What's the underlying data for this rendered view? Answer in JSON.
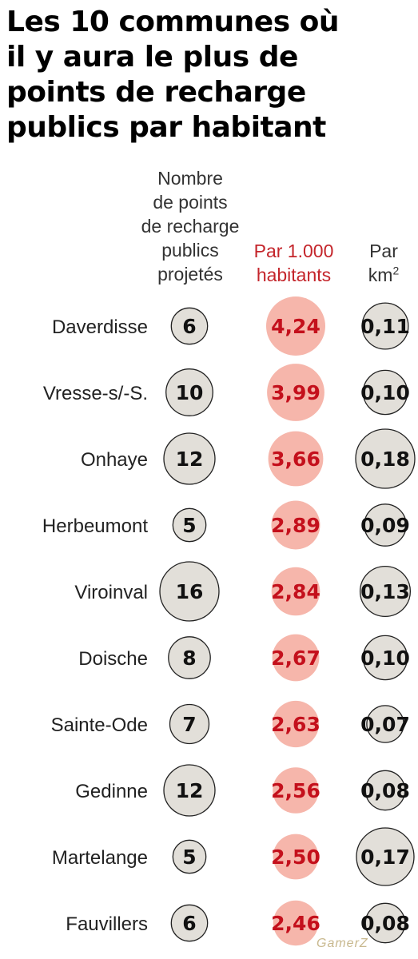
{
  "title": "Les 10 communes où\nil y aura le plus de\npoints de recharge\npublics par habitant",
  "columns": {
    "count": "Nombre\nde points\nde recharge\npublics\nprojetés",
    "per1000": "Par 1.000\nhabitants",
    "perkm2_base": "Par\nkm",
    "perkm2_sup": "2"
  },
  "watermark": "GamerZ",
  "colors": {
    "grey_circle": "#e2dfd9",
    "red_circle": "#f6b6ab",
    "red_text": "#c4101c",
    "circle_stroke": "#222222"
  },
  "chart_data": {
    "type": "table",
    "title": "Les 10 communes où il y aura le plus de points de recharge publics par habitant",
    "categories": [
      "Daverdisse",
      "Vresse-s/-S.",
      "Onhaye",
      "Herbeumont",
      "Viroinval",
      "Doische",
      "Sainte-Ode",
      "Gedinne",
      "Martelange",
      "Fauvillers"
    ],
    "series": [
      {
        "name": "Nombre de points de recharge publics projetés",
        "values": [
          6,
          10,
          12,
          5,
          16,
          8,
          7,
          12,
          5,
          6
        ],
        "labels": [
          "6",
          "10",
          "12",
          "5",
          "16",
          "8",
          "7",
          "12",
          "5",
          "6"
        ]
      },
      {
        "name": "Par 1.000 habitants",
        "values": [
          4.24,
          3.99,
          3.66,
          2.89,
          2.84,
          2.67,
          2.63,
          2.56,
          2.5,
          2.46
        ],
        "labels": [
          "4,24",
          "3,99",
          "3,66",
          "2,89",
          "2,84",
          "2,67",
          "2,63",
          "2,56",
          "2,50",
          "2,46"
        ]
      },
      {
        "name": "Par km²",
        "values": [
          0.11,
          0.1,
          0.18,
          0.09,
          0.13,
          0.1,
          0.07,
          0.08,
          0.17,
          0.08
        ],
        "labels": [
          "0,11",
          "0,10",
          "0,18",
          "0,09",
          "0,13",
          "0,10",
          "0,07",
          "0,08",
          "0,17",
          "0,08"
        ]
      }
    ]
  }
}
